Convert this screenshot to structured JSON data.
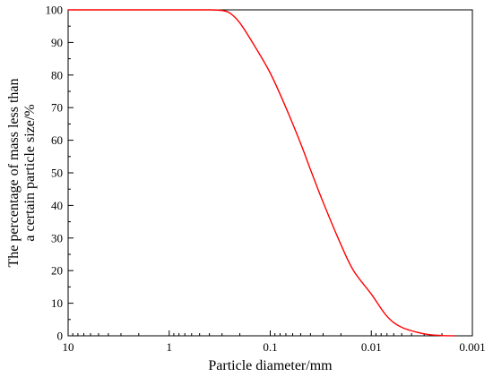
{
  "chart_data": {
    "type": "line",
    "title": "",
    "xlabel": "Particle diameter/mm",
    "ylabel_lines": [
      "The percentage of mass less than",
      "a certain particle size/%"
    ],
    "x_scale": "log",
    "x_reversed": true,
    "xlim": [
      10,
      0.001
    ],
    "ylim": [
      0,
      100
    ],
    "x_ticks": [
      10,
      1,
      0.1,
      0.01,
      0.001
    ],
    "x_tick_labels": [
      "10",
      "1",
      "0.1",
      "0.01",
      "0.001"
    ],
    "y_ticks": [
      0,
      10,
      20,
      30,
      40,
      50,
      60,
      70,
      80,
      90,
      100
    ],
    "y_tick_labels": [
      "0",
      "10",
      "20",
      "30",
      "40",
      "50",
      "60",
      "70",
      "80",
      "90",
      "100"
    ],
    "grid": false,
    "legend": "none",
    "series": [
      {
        "color": "#ff0000",
        "x": [
          10,
          1,
          0.4,
          0.3,
          0.25,
          0.2,
          0.15,
          0.1,
          0.07,
          0.05,
          0.04,
          0.03,
          0.02,
          0.015,
          0.01,
          0.007,
          0.005,
          0.003,
          0.002,
          0.0015
        ],
        "y": [
          100,
          100,
          100,
          99.8,
          99,
          96,
          90,
          80.6,
          70,
          59,
          51,
          41,
          28,
          20,
          12.8,
          6,
          2.6,
          0.6,
          0.1,
          0
        ]
      }
    ]
  }
}
